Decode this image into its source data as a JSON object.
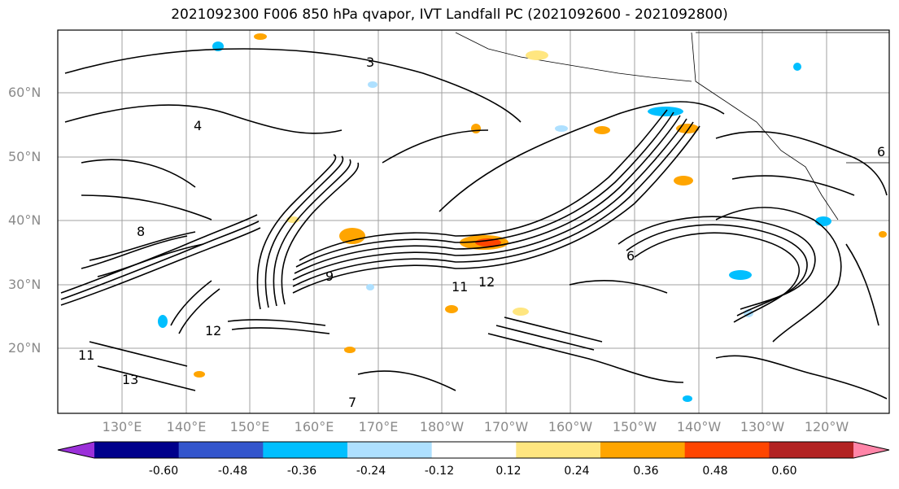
{
  "title": "2021092300 F006 850 hPa qvapor, IVT Landfall PC (2021092600 - 2021092800)",
  "lat_labels": [
    "60°N",
    "50°N",
    "40°N",
    "30°N",
    "20°N"
  ],
  "lon_labels": [
    "130°E",
    "140°E",
    "150°E",
    "160°E",
    "170°E",
    "180°W",
    "170°W",
    "160°W",
    "150°W",
    "140°W",
    "130°W",
    "120°W"
  ],
  "colorbar": {
    "ticks": [
      "-0.60",
      "-0.48",
      "-0.36",
      "-0.24",
      "-0.12",
      "0.12",
      "0.24",
      "0.36",
      "0.48",
      "0.60"
    ],
    "colors": [
      "#9b30d9",
      "#00008b",
      "#3355cc",
      "#00bfff",
      "#aee0ff",
      "#ffffff",
      "#ffe680",
      "#ffa500",
      "#ff4500",
      "#b22222",
      "#ff85a8"
    ]
  },
  "contour_labels": [
    "3",
    "4",
    "6",
    "8",
    "9",
    "11",
    "12",
    "13",
    "12",
    "11",
    "6",
    "7"
  ]
}
